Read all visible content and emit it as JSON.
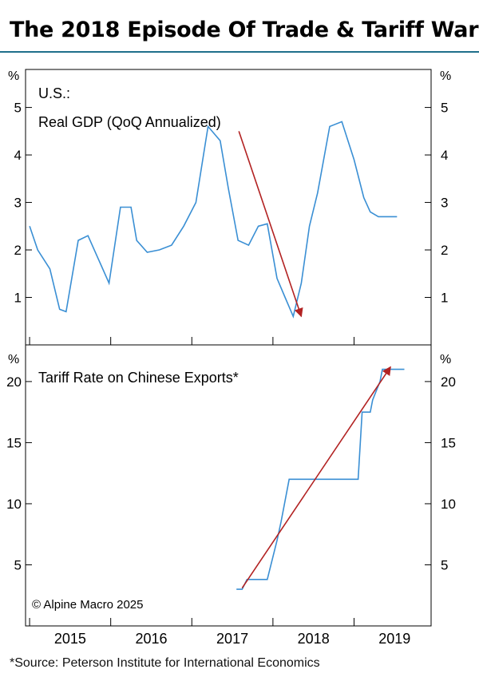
{
  "title": "The 2018 Episode Of Trade & Tariff War",
  "source": "*Source: Peterson Institute for International Economics",
  "copyright": "© Alpine Macro 2025",
  "colors": {
    "line": "#3a8fd4",
    "arrow": "#b22222",
    "rule": "#1f6f8b"
  },
  "chart_data": [
    {
      "type": "line",
      "title": "U.S.:",
      "subtitle": "Real GDP (QoQ Annualized)",
      "unit": "%",
      "ylim": [
        0,
        5.8
      ],
      "yticks": [
        "1",
        "2",
        "3",
        "4",
        "5"
      ],
      "xlim": [
        2014.95,
        2019.95
      ],
      "grid": false,
      "series": [
        {
          "x": [
            2015.0,
            2015.1,
            2015.25,
            2015.37,
            2015.45,
            2015.6,
            2015.72,
            2015.85,
            2015.98,
            2016.12,
            2016.25,
            2016.32,
            2016.45,
            2016.6,
            2016.75,
            2016.9,
            2017.05,
            2017.2,
            2017.35,
            2017.45,
            2017.57,
            2017.7,
            2017.82,
            2017.93,
            2018.05,
            2018.15,
            2018.25,
            2018.35,
            2018.45,
            2018.55,
            2018.7,
            2018.85,
            2019.0,
            2019.12,
            2019.2,
            2019.3,
            2019.38,
            2019.45,
            2019.53
          ],
          "y": [
            2.5,
            2.0,
            1.6,
            0.75,
            0.7,
            2.2,
            2.3,
            1.8,
            1.3,
            2.9,
            2.9,
            2.2,
            1.95,
            2.0,
            2.1,
            2.5,
            3.0,
            4.6,
            4.3,
            3.3,
            2.2,
            2.1,
            2.5,
            2.55,
            1.4,
            1.0,
            0.6,
            1.3,
            2.5,
            3.2,
            4.6,
            4.7,
            3.9,
            3.1,
            2.8,
            2.7,
            2.7,
            2.7,
            2.7
          ]
        }
      ],
      "arrow": {
        "from": [
          2017.58,
          4.5
        ],
        "to": [
          2018.35,
          0.6
        ]
      }
    },
    {
      "type": "line",
      "title": "Tariff Rate on Chinese Exports*",
      "unit": "%",
      "ylim": [
        0,
        23
      ],
      "yticks": [
        "5",
        "10",
        "15",
        "20"
      ],
      "xlim": [
        2014.95,
        2019.95
      ],
      "xticks": [
        "2015",
        "2016",
        "2017",
        "2018",
        "2019"
      ],
      "grid": false,
      "series": [
        {
          "x": [
            2017.55,
            2017.62,
            2017.68,
            2017.8,
            2017.93,
            2018.05,
            2018.1,
            2018.2,
            2018.3,
            2018.45,
            2018.6,
            2018.75,
            2018.9,
            2019.05,
            2019.1,
            2019.2,
            2019.23,
            2019.32,
            2019.35,
            2019.42,
            2019.5,
            2019.62
          ],
          "y": [
            3.0,
            3.0,
            3.8,
            3.8,
            3.8,
            7.0,
            8.5,
            12.0,
            12.0,
            12.0,
            12.0,
            12.0,
            12.0,
            12.0,
            17.5,
            17.5,
            18.5,
            20.0,
            21.0,
            21.0,
            21.0,
            21.0
          ]
        }
      ],
      "arrow": {
        "from": [
          2017.62,
          3.1
        ],
        "to": [
          2019.45,
          21.2
        ]
      }
    }
  ]
}
